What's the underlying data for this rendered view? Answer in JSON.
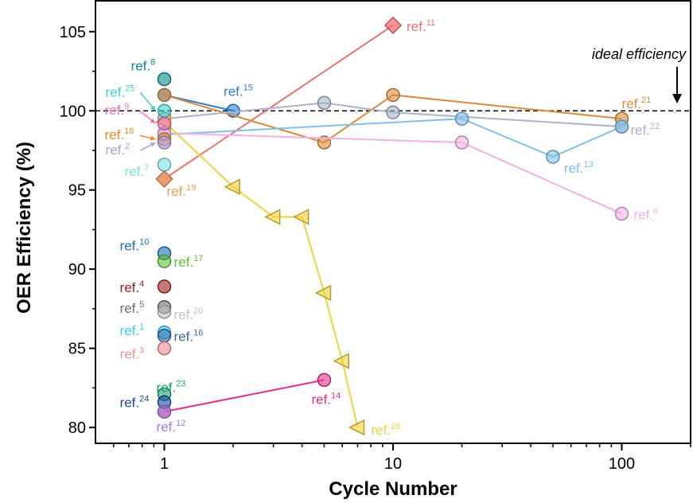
{
  "chart_data": {
    "type": "scatter",
    "xlabel": "Cycle Number",
    "ylabel": "OER Efficiency (%)",
    "xscale": "log",
    "xlim": [
      0.5,
      200
    ],
    "ylim": [
      79,
      107
    ],
    "xticks": [
      {
        "value": 1,
        "label": "1"
      },
      {
        "value": 10,
        "label": "10"
      },
      {
        "value": 100,
        "label": "100"
      }
    ],
    "yticks": [
      {
        "value": 80,
        "label": "80"
      },
      {
        "value": 85,
        "label": "85"
      },
      {
        "value": 90,
        "label": "90"
      },
      {
        "value": 95,
        "label": "95"
      },
      {
        "value": 100,
        "label": "100"
      },
      {
        "value": 105,
        "label": "105"
      }
    ],
    "ideal_line": {
      "y": 100,
      "label": "ideal efficiency"
    },
    "series": [
      {
        "name": "ref.11",
        "ref": "11",
        "color": "#f07070",
        "marker": "diamond",
        "points": [
          [
            1,
            95.7
          ],
          [
            10,
            105.4
          ]
        ]
      },
      {
        "name": "ref.19",
        "ref": "19",
        "color": "#e8a060",
        "marker": "diamond",
        "points": [
          [
            1,
            95.7
          ]
        ]
      },
      {
        "name": "ref.15",
        "ref": "15",
        "color": "#2a7fd4",
        "marker": "circle",
        "points": [
          [
            1,
            101
          ],
          [
            2,
            100
          ]
        ]
      },
      {
        "name": "ref.21",
        "ref": "21",
        "color": "#d98a3a",
        "marker": "circle",
        "points": [
          [
            1,
            101
          ],
          [
            5,
            98
          ],
          [
            10,
            101
          ],
          [
            100,
            99.5
          ]
        ]
      },
      {
        "name": "ref.22",
        "ref": "22",
        "color": "#a8b4c8",
        "marker": "circle",
        "points": [
          [
            1,
            99.5
          ],
          [
            5,
            100.5
          ],
          [
            10,
            99.9
          ],
          [
            100,
            99
          ]
        ]
      },
      {
        "name": "ref.13",
        "ref": "13",
        "color": "#7fbfe8",
        "marker": "circle",
        "points": [
          [
            1,
            98.5
          ],
          [
            20,
            99.5
          ],
          [
            50,
            97.1
          ],
          [
            100,
            99
          ]
        ]
      },
      {
        "name": "ref.6",
        "ref": "6",
        "color": "#f0b0e8",
        "marker": "circle",
        "points": [
          [
            1,
            98.6
          ],
          [
            20,
            98
          ],
          [
            100,
            93.5
          ]
        ]
      },
      {
        "name": "ref.26",
        "ref": "26",
        "color": "#f2d23a",
        "marker": "triangle-left",
        "points": [
          [
            1,
            99.3
          ],
          [
            2,
            95.2
          ],
          [
            3,
            93.3
          ],
          [
            4,
            93.3
          ],
          [
            5,
            88.5
          ],
          [
            6,
            84.2
          ],
          [
            7,
            80
          ]
        ]
      },
      {
        "name": "ref.14",
        "ref": "14",
        "color": "#e0308a",
        "marker": "circle",
        "points": [
          [
            1,
            81
          ],
          [
            5,
            83
          ]
        ]
      },
      {
        "name": "ref.8",
        "ref": "8",
        "color": "#0a8a8a",
        "marker": "circle",
        "points": [
          [
            1,
            102
          ]
        ]
      },
      {
        "name": "ref.25",
        "ref": "25",
        "color": "#40d0d0",
        "marker": "circle",
        "points": [
          [
            1,
            100
          ]
        ]
      },
      {
        "name": "ref.9",
        "ref": "9",
        "color": "#f070c0",
        "marker": "circle",
        "points": [
          [
            1,
            99.2
          ]
        ]
      },
      {
        "name": "ref.18",
        "ref": "18",
        "color": "#f08a20",
        "marker": "circle",
        "points": [
          [
            1,
            98.2
          ]
        ]
      },
      {
        "name": "ref.2",
        "ref": "2",
        "color": "#a8a0e8",
        "marker": "circle",
        "points": [
          [
            1,
            98
          ]
        ]
      },
      {
        "name": "ref.7",
        "ref": "7",
        "color": "#80e0e0",
        "marker": "circle",
        "points": [
          [
            1,
            96.6
          ]
        ]
      },
      {
        "name": "ref.10",
        "ref": "10",
        "color": "#1a70c0",
        "marker": "circle",
        "points": [
          [
            1,
            91
          ]
        ]
      },
      {
        "name": "ref.17",
        "ref": "17",
        "color": "#60c030",
        "marker": "circle",
        "points": [
          [
            1,
            90.5
          ]
        ]
      },
      {
        "name": "ref.4",
        "ref": "4",
        "color": "#a02020",
        "marker": "circle",
        "points": [
          [
            1,
            88.9
          ]
        ]
      },
      {
        "name": "ref.5",
        "ref": "5",
        "color": "#707070",
        "marker": "circle",
        "points": [
          [
            1,
            87.6
          ]
        ]
      },
      {
        "name": "ref.20",
        "ref": "20",
        "color": "#c0c0c0",
        "marker": "circle",
        "points": [
          [
            1,
            87.3
          ]
        ]
      },
      {
        "name": "ref.1",
        "ref": "1",
        "color": "#30d0f0",
        "marker": "circle",
        "points": [
          [
            1,
            86
          ]
        ]
      },
      {
        "name": "ref.16",
        "ref": "16",
        "color": "#3a6aa8",
        "marker": "circle",
        "points": [
          [
            1,
            85.8
          ]
        ]
      },
      {
        "name": "ref.3",
        "ref": "3",
        "color": "#f09090",
        "marker": "circle",
        "points": [
          [
            1,
            85
          ]
        ]
      },
      {
        "name": "ref.23",
        "ref": "23",
        "color": "#1aa070",
        "marker": "circle",
        "points": [
          [
            1,
            82.1
          ]
        ]
      },
      {
        "name": "ref.24",
        "ref": "24",
        "color": "#1a4aa8",
        "marker": "circle",
        "points": [
          [
            1,
            81.6
          ]
        ]
      },
      {
        "name": "ref.12",
        "ref": "12",
        "color": "#a080e0",
        "marker": "circle",
        "points": [
          [
            1,
            81
          ]
        ]
      }
    ]
  }
}
